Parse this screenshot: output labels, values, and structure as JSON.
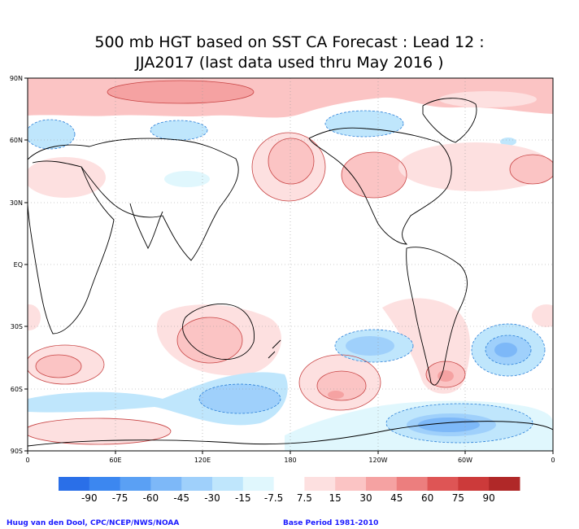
{
  "title": {
    "line1": "500 mb HGT based on SST CA Forecast : Lead 12 :",
    "line2": "JJA2017 (last data used thru May 2016 )"
  },
  "map": {
    "lat_labels": [
      "90N",
      "60N",
      "30N",
      "EQ",
      "30S",
      "60S",
      "90S"
    ],
    "lon_labels": [
      "0",
      "60E",
      "120E",
      "180",
      "120W",
      "60W",
      "0"
    ]
  },
  "colorbar": {
    "labels": [
      "-90",
      "-75",
      "-60",
      "-45",
      "-30",
      "-15",
      "-7.5",
      "7.5",
      "15",
      "30",
      "45",
      "60",
      "75",
      "90"
    ],
    "colors": [
      "#2a6fe8",
      "#3c87f0",
      "#5aa0f4",
      "#7db8f8",
      "#9fd0fb",
      "#bfe6fc",
      "#e0f7fd",
      "#ffffff",
      "#fde0e0",
      "#fbc4c4",
      "#f5a2a2",
      "#ec7e7e",
      "#de5555",
      "#cc3a3a",
      "#b02828"
    ]
  },
  "footer": {
    "credit": "Huug van den Dool, CPC/NCEP/NWS/NOAA",
    "base_period": "Base Period 1981-2010"
  }
}
